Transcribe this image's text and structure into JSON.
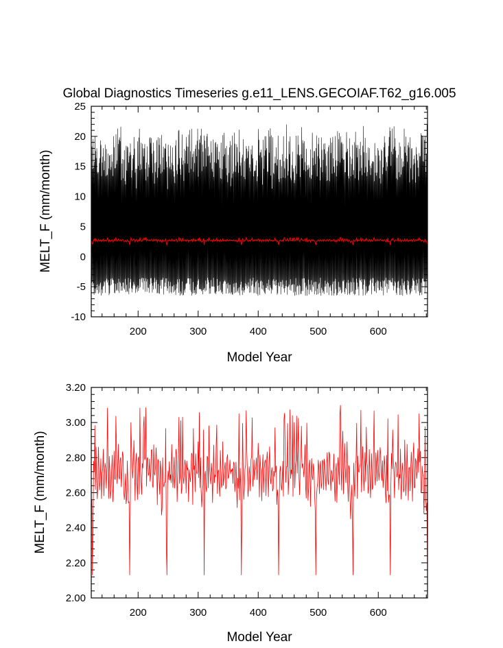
{
  "chart_data": [
    {
      "type": "line",
      "title": "Global Diagnostics Timeseries g.e11_LENS.GECOIAF.T62_g16.005",
      "xlabel": "Model Year",
      "ylabel": "MELT_F (mm/month)",
      "xlim": [
        122,
        682
      ],
      "ylim": [
        -10,
        25
      ],
      "xticks": [
        200,
        300,
        400,
        500,
        600
      ],
      "xtick_labels": [
        "200",
        "300",
        "400",
        "500",
        "600"
      ],
      "yticks": [
        -10,
        -5,
        0,
        5,
        10,
        15,
        20,
        25
      ],
      "ytick_labels": [
        "-10",
        "-5",
        "0",
        "5",
        "10",
        "15",
        "20",
        "25"
      ],
      "series": [
        {
          "color": "#000000",
          "description_values": {
            "sampling": "monthly",
            "annual_cycle_min_range": [
              -6.5,
              -3.5
            ],
            "annual_cycle_max_range": [
              14.0,
              22.2
            ]
          }
        },
        {
          "color": "#ff0000",
          "description_values": {
            "sampling": "annual mean",
            "approx_mean": 2.75,
            "range": [
              2.13,
              3.1
            ]
          }
        }
      ]
    },
    {
      "type": "line",
      "title": "",
      "xlabel": "Model Year",
      "ylabel": "MELT_F (mm/month)",
      "xlim": [
        122,
        682
      ],
      "ylim": [
        2.0,
        3.2
      ],
      "xticks": [
        200,
        300,
        400,
        500,
        600
      ],
      "xtick_labels": [
        "200",
        "300",
        "400",
        "500",
        "600"
      ],
      "yticks": [
        2.0,
        2.2,
        2.4,
        2.6,
        2.8,
        3.0,
        3.2
      ],
      "ytick_labels": [
        "2.00",
        "2.20",
        "2.40",
        "2.60",
        "2.80",
        "3.00",
        "3.20"
      ],
      "series": [
        {
          "color": "#ff0000",
          "cycle_years": 62,
          "cycle_start": 124,
          "minima_years": [
            186,
            248,
            310,
            372,
            434,
            496,
            558,
            620
          ],
          "min_value": 2.13,
          "max_value": 3.1,
          "mean_value": 2.75
        }
      ]
    }
  ]
}
